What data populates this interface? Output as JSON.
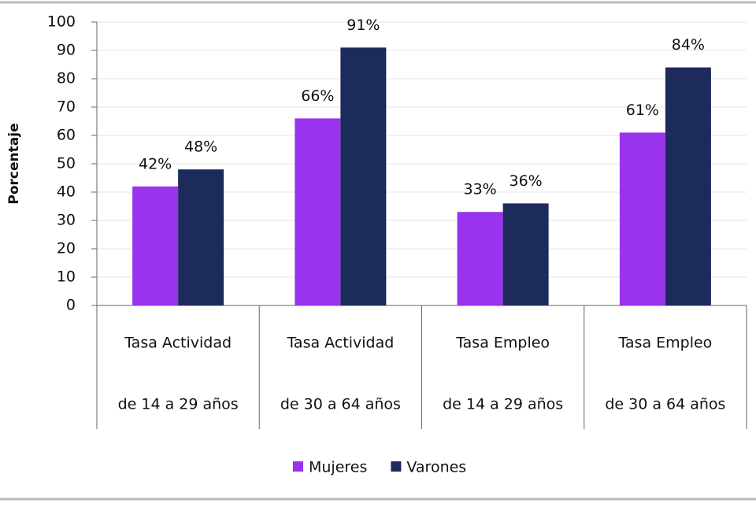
{
  "chart_data": {
    "type": "bar",
    "y_label": "Porcentaje",
    "categories": [
      [
        "Tasa Actividad",
        "de 14 a 29 años"
      ],
      [
        "Tasa Actividad",
        "de 30 a 64 años"
      ],
      [
        "Tasa Empleo",
        "de 14 a 29 años"
      ],
      [
        "Tasa Empleo",
        "de 30 a 64 años"
      ]
    ],
    "series": [
      {
        "name": "Mujeres",
        "color": "#9933ee",
        "values": [
          42,
          66,
          33,
          61
        ],
        "value_labels": [
          "42%",
          "66%",
          "33%",
          "61%"
        ]
      },
      {
        "name": "Varones",
        "color": "#1c2a5c",
        "values": [
          48,
          91,
          36,
          84
        ],
        "value_labels": [
          "48%",
          "91%",
          "36%",
          "84%"
        ]
      }
    ],
    "ylim": [
      0,
      100
    ],
    "yticks": [
      0,
      10,
      20,
      30,
      40,
      50,
      60,
      70,
      80,
      90,
      100
    ],
    "grid": true,
    "legend": "bottom"
  }
}
